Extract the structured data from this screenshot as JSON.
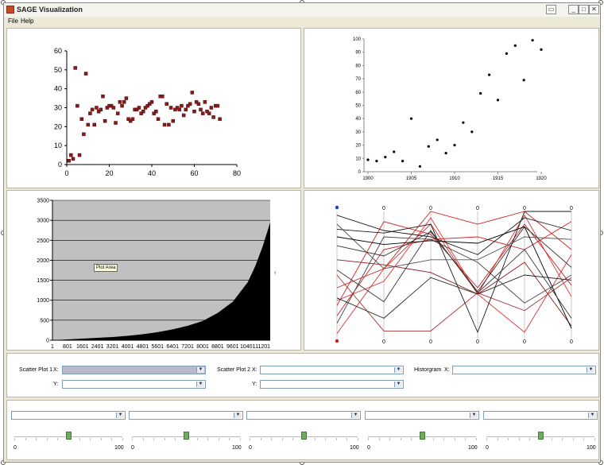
{
  "window": {
    "title": "SAGE Visualization",
    "buttons": {
      "restore": "▭",
      "minimize": "_",
      "maximize": "□",
      "close": "✕"
    }
  },
  "menu": [
    {
      "label": "File"
    },
    {
      "label": "Help"
    }
  ],
  "charts": {
    "scatter1": {
      "xticks": [
        "0",
        "20",
        "40",
        "60",
        "80"
      ],
      "yticks": [
        "0",
        "10",
        "20",
        "30",
        "40",
        "50",
        "60"
      ],
      "marker_color": "#8b1a1a"
    },
    "scatter2": {
      "xticks": [
        "1900",
        "1905",
        "1910",
        "1915",
        "1920"
      ],
      "yticks": [
        "0",
        "10",
        "20",
        "30",
        "40",
        "50",
        "60",
        "70",
        "80",
        "90",
        "100"
      ]
    },
    "area": {
      "xticks": [
        "1",
        "801",
        "1601",
        "2401",
        "3201",
        "4001",
        "4801",
        "5601",
        "6401",
        "7201",
        "8001",
        "8801",
        "9601",
        "10401",
        "11201"
      ],
      "yticks": [
        "0",
        "500",
        "1000",
        "1500",
        "2000",
        "2500",
        "3000",
        "3500"
      ],
      "tooltip": "Plot Area",
      "plot_bg": "#c0c0c0"
    },
    "parallel": {
      "top_labels": [
        "0",
        "0",
        "0",
        "0",
        "0"
      ],
      "bottom_labels": [
        "0",
        "0",
        "0",
        "0",
        "0"
      ]
    }
  },
  "chart_data": [
    {
      "type": "scatter",
      "xlim": [
        0,
        80
      ],
      "ylim": [
        0,
        60
      ],
      "grid": false,
      "points": [
        [
          1,
          2
        ],
        [
          2,
          5
        ],
        [
          3,
          3
        ],
        [
          4,
          51
        ],
        [
          5,
          31
        ],
        [
          6,
          5
        ],
        [
          7,
          24
        ],
        [
          8,
          16
        ],
        [
          9,
          48
        ],
        [
          10,
          21
        ],
        [
          11,
          27
        ],
        [
          12,
          29
        ],
        [
          13,
          21
        ],
        [
          14,
          30
        ],
        [
          15,
          28
        ],
        [
          16,
          29
        ],
        [
          17,
          36
        ],
        [
          18,
          23
        ],
        [
          19,
          30
        ],
        [
          20,
          31
        ],
        [
          21,
          31
        ],
        [
          22,
          30
        ],
        [
          23,
          22
        ],
        [
          24,
          27
        ],
        [
          25,
          33
        ],
        [
          26,
          31
        ],
        [
          27,
          33
        ],
        [
          28,
          35
        ],
        [
          29,
          24
        ],
        [
          30,
          23
        ],
        [
          31,
          24
        ],
        [
          32,
          29
        ],
        [
          33,
          29
        ],
        [
          34,
          30
        ],
        [
          35,
          27
        ],
        [
          36,
          28
        ],
        [
          37,
          30
        ],
        [
          38,
          31
        ],
        [
          39,
          32
        ],
        [
          40,
          33
        ],
        [
          41,
          27
        ],
        [
          42,
          28
        ],
        [
          43,
          24
        ],
        [
          44,
          36
        ],
        [
          45,
          36
        ],
        [
          46,
          21
        ],
        [
          47,
          32
        ],
        [
          48,
          21
        ],
        [
          49,
          30
        ],
        [
          50,
          23
        ],
        [
          51,
          29
        ],
        [
          52,
          30
        ],
        [
          53,
          29
        ],
        [
          54,
          31
        ],
        [
          55,
          26
        ],
        [
          56,
          29
        ],
        [
          57,
          31
        ],
        [
          58,
          32
        ],
        [
          59,
          38
        ],
        [
          60,
          28
        ],
        [
          61,
          33
        ],
        [
          62,
          32
        ],
        [
          63,
          29
        ],
        [
          64,
          27
        ],
        [
          65,
          33
        ],
        [
          66,
          28
        ],
        [
          67,
          27
        ],
        [
          68,
          30
        ],
        [
          69,
          25
        ],
        [
          70,
          31
        ],
        [
          71,
          31
        ],
        [
          72,
          24
        ]
      ]
    },
    {
      "type": "scatter",
      "xlim": [
        1900,
        1920
      ],
      "ylim": [
        0,
        100
      ],
      "grid": false,
      "points": [
        [
          1900,
          9
        ],
        [
          1901,
          8
        ],
        [
          1902,
          11
        ],
        [
          1903,
          15
        ],
        [
          1904,
          8
        ],
        [
          1905,
          40
        ],
        [
          1906,
          4
        ],
        [
          1907,
          19
        ],
        [
          1908,
          24
        ],
        [
          1909,
          14
        ],
        [
          1910,
          20
        ],
        [
          1911,
          37
        ],
        [
          1912,
          30
        ],
        [
          1913,
          59
        ],
        [
          1914,
          73
        ],
        [
          1915,
          54
        ],
        [
          1916,
          89
        ],
        [
          1917,
          95
        ],
        [
          1918,
          69
        ],
        [
          1919,
          99
        ],
        [
          1920,
          92
        ]
      ]
    },
    {
      "type": "area",
      "xlim": [
        1,
        11600
      ],
      "ylim": [
        0,
        3500
      ],
      "grid": true,
      "x": [
        1,
        801,
        1601,
        2401,
        3201,
        4001,
        4801,
        5601,
        6401,
        7201,
        8001,
        8801,
        9601,
        10401,
        10801,
        11201,
        11600
      ],
      "values": [
        0,
        20,
        40,
        60,
        80,
        110,
        150,
        200,
        270,
        360,
        480,
        680,
        960,
        1450,
        1850,
        2350,
        2950
      ]
    },
    {
      "type": "line",
      "axes": 6,
      "ylim": [
        0,
        1
      ],
      "series": [
        {
          "color": "#8b1a1a",
          "values": [
            0.62,
            0.58,
            0.52,
            0.35,
            0.6,
            0.1
          ]
        },
        {
          "color": "#cc2222",
          "values": [
            0.4,
            0.55,
            1.0,
            0.9,
            1.0,
            0.7
          ]
        },
        {
          "color": "#cc2222",
          "values": [
            0.18,
            0.7,
            0.78,
            0.8,
            0.7,
            0.92
          ]
        },
        {
          "color": "#cc2222",
          "values": [
            0.26,
            0.92,
            0.82,
            0.4,
            0.9,
            0.42
          ]
        },
        {
          "color": "#e03030",
          "values": [
            0.04,
            0.55,
            0.9,
            0.35,
            0.05,
            0.66
          ]
        },
        {
          "color": "#e03030",
          "values": [
            0.3,
            0.45,
            0.95,
            0.35,
            0.97,
            0.33
          ]
        },
        {
          "color": "#aa3333",
          "values": [
            0.5,
            0.06,
            0.06,
            0.36,
            0.22,
            0.48
          ]
        },
        {
          "color": "#1a1a1a",
          "values": [
            0.97,
            0.85,
            0.8,
            0.66,
            0.95,
            0.85
          ]
        },
        {
          "color": "#1a1a1a",
          "values": [
            0.86,
            0.83,
            0.9,
            0.05,
            1.0,
            1.0
          ]
        },
        {
          "color": "#333333",
          "values": [
            0.73,
            0.65,
            0.84,
            0.37,
            0.88,
            0.56
          ]
        },
        {
          "color": "#222222",
          "values": [
            0.32,
            0.16,
            0.48,
            0.35,
            0.5,
            0.46
          ]
        },
        {
          "color": "#444444",
          "values": [
            0.12,
            0.8,
            0.78,
            0.6,
            0.28,
            0.5
          ]
        },
        {
          "color": "#555555",
          "values": [
            0.9,
            0.55,
            0.62,
            0.62,
            0.8,
            0.78
          ]
        },
        {
          "color": "#000000",
          "values": [
            0.8,
            0.74,
            0.77,
            0.75,
            0.88,
            0.08
          ]
        },
        {
          "color": "#333333",
          "values": [
            0.54,
            0.29,
            0.85,
            0.36,
            0.7,
            0.16
          ]
        }
      ]
    }
  ],
  "controls": {
    "scatter1": {
      "label": "Scatter Plot 1",
      "x_label": "X:",
      "y_label": "Y:"
    },
    "scatter2": {
      "label": "Scatter Plot 2",
      "x_label": "X:",
      "y_label": "Y:"
    },
    "histogram": {
      "label": "Historgram",
      "x_label": "X:"
    }
  },
  "sliders": [
    {
      "min": "0",
      "max": "100",
      "value": 50
    },
    {
      "min": "0",
      "max": "100",
      "value": 50
    },
    {
      "min": "0",
      "max": "100",
      "value": 50
    },
    {
      "min": "0",
      "max": "100",
      "value": 50
    },
    {
      "min": "0",
      "max": "100",
      "value": 50
    }
  ]
}
